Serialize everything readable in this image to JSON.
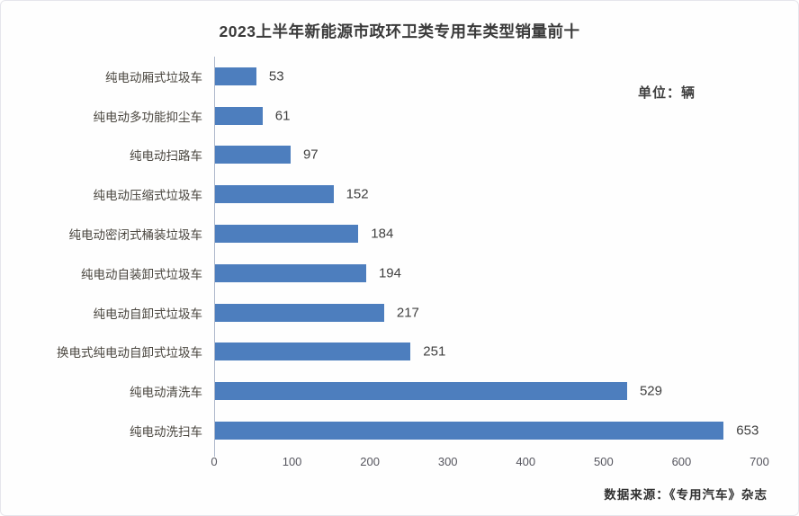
{
  "title": "2023上半年新能源市政环卫类专用车类型销量前十",
  "unit_label": "单位：辆",
  "source": "数据来源：《专用汽车》杂志",
  "colors": {
    "bar": "#4d7ebe",
    "axis_line": "#aeb9cc",
    "title_text": "#3a3a3a",
    "value_text": "#404040"
  },
  "chart_data": {
    "type": "bar",
    "orientation": "horizontal",
    "title": "2023上半年新能源市政环卫类专用车类型销量前十",
    "unit": "辆",
    "categories": [
      "纯电动厢式垃圾车",
      "纯电动多功能抑尘车",
      "纯电动扫路车",
      "纯电动压缩式垃圾车",
      "纯电动密闭式桶装垃圾车",
      "纯电动自装卸式垃圾车",
      "纯电动自卸式垃圾车",
      "换电式纯电动自卸式垃圾车",
      "纯电动清洗车",
      "纯电动洗扫车"
    ],
    "values": [
      53,
      61,
      97,
      152,
      184,
      194,
      217,
      251,
      529,
      653
    ],
    "xlabel": "",
    "ylabel": "",
    "xlim": [
      0,
      700
    ],
    "xticks": [
      0,
      100,
      200,
      300,
      400,
      500,
      600,
      700
    ],
    "value_labels": true,
    "grid": false,
    "legend": false
  }
}
